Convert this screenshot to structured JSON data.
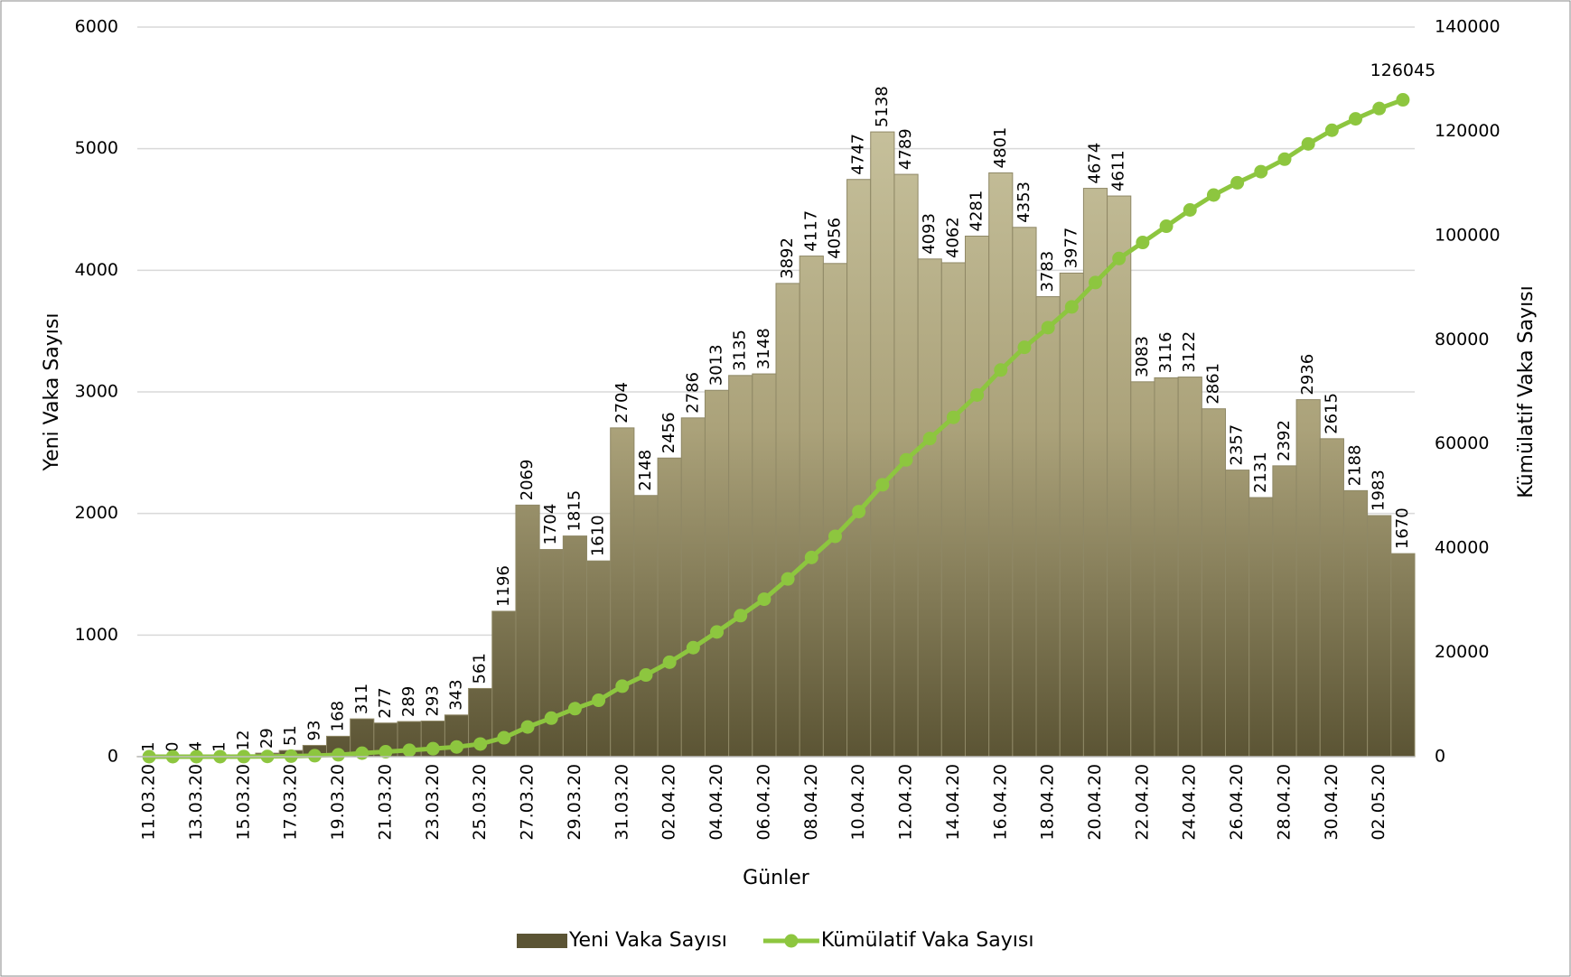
{
  "chart_data": {
    "type": "bar",
    "x_label": "Günler",
    "y_label": "Yeni Vaka Sayısı",
    "y2_label": "Kümülatif Vaka Sayısı",
    "categories": [
      "11.03.20",
      null,
      "13.03.20",
      null,
      "15.03.20",
      null,
      "17.03.20",
      null,
      "19.03.20",
      null,
      "21.03.20",
      null,
      "23.03.20",
      null,
      "25.03.20",
      null,
      "27.03.20",
      null,
      "29.03.20",
      null,
      "31.03.20",
      null,
      "02.04.20",
      null,
      "04.04.20",
      null,
      "06.04.20",
      null,
      "08.04.20",
      null,
      "10.04.20",
      null,
      "12.04.20",
      null,
      "14.04.20",
      null,
      "16.04.20",
      null,
      "18.04.20",
      null,
      "20.04.20",
      null,
      "22.04.20",
      null,
      "24.04.20",
      null,
      "26.04.20",
      null,
      "28.04.20",
      null,
      "30.04.20",
      null,
      "02.05.20",
      null
    ],
    "series": [
      {
        "name": "Yeni Vaka Sayısı",
        "type": "bar",
        "color": "#8f8866",
        "values": [
          1,
          0,
          4,
          1,
          12,
          29,
          51,
          93,
          168,
          311,
          277,
          289,
          293,
          343,
          561,
          1196,
          2069,
          1704,
          1815,
          1610,
          2704,
          2148,
          2456,
          2786,
          3013,
          3135,
          3148,
          3892,
          4117,
          4056,
          4747,
          5138,
          4789,
          4093,
          4062,
          4281,
          4801,
          4353,
          3783,
          3977,
          4674,
          4611,
          3083,
          3116,
          3122,
          2861,
          2357,
          2131,
          2392,
          2936,
          2615,
          2188,
          1983,
          1670
        ]
      },
      {
        "name": "Kümülatif Vaka Sayısı",
        "type": "line",
        "axis": "y2",
        "color": "#8dc63f",
        "values": [
          1,
          1,
          5,
          6,
          18,
          47,
          98,
          191,
          359,
          670,
          947,
          1236,
          1529,
          1872,
          2433,
          3629,
          5698,
          7402,
          9217,
          10827,
          13531,
          15679,
          18135,
          20921,
          23934,
          27069,
          30217,
          34109,
          38226,
          42282,
          47029,
          52167,
          56956,
          61049,
          65111,
          69392,
          74193,
          78546,
          82329,
          86306,
          90980,
          95591,
          98674,
          101790,
          104912,
          107773,
          110130,
          112261,
          114653,
          117589,
          120204,
          122392,
          124375,
          126045
        ]
      }
    ],
    "ylim": [
      0,
      6000
    ],
    "yticks": [
      0,
      1000,
      2000,
      3000,
      4000,
      5000,
      6000
    ],
    "y2lim": [
      0,
      140000
    ],
    "y2ticks": [
      0,
      20000,
      40000,
      60000,
      80000,
      100000,
      120000,
      140000
    ],
    "grid": true,
    "legend": "bottom"
  }
}
